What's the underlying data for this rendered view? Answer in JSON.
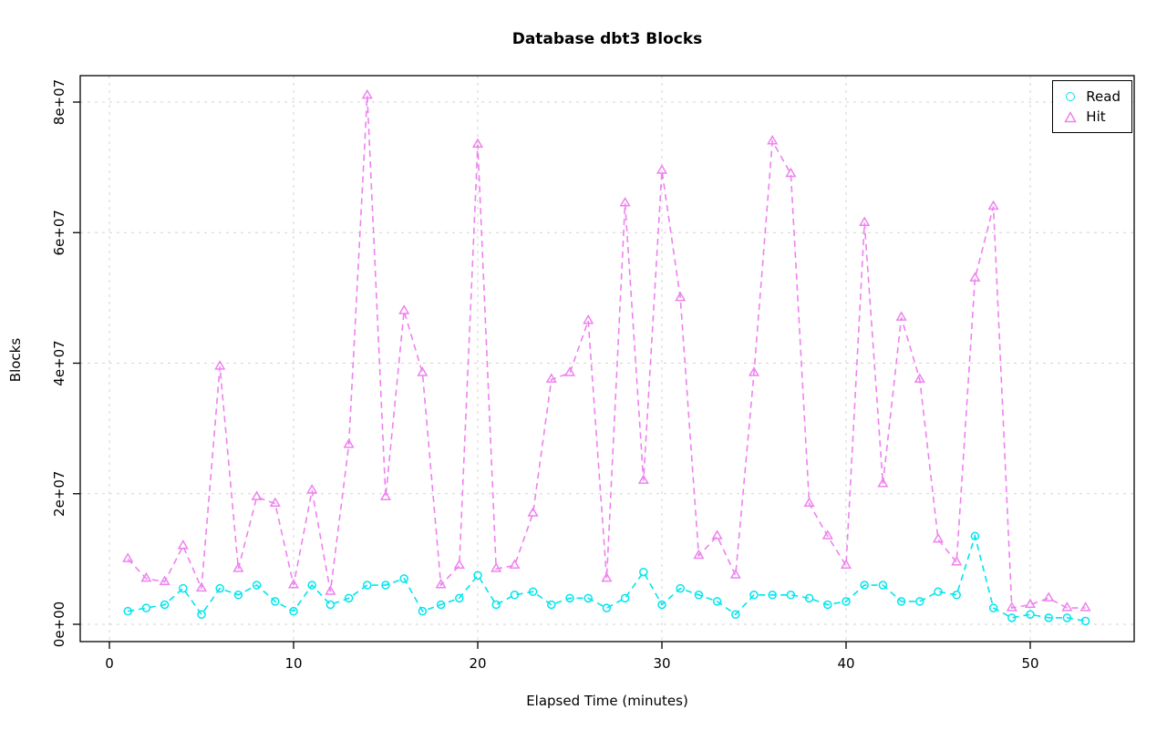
{
  "chart_data": {
    "type": "line",
    "title": "Database dbt3 Blocks",
    "xlabel": "Elapsed Time (minutes)",
    "ylabel": "Blocks",
    "xlim": [
      0,
      54
    ],
    "ylim": [
      0,
      83000000
    ],
    "grid": true,
    "legend_position": "top-right",
    "x_ticks": [
      0,
      10,
      20,
      30,
      40,
      50
    ],
    "x_tick_labels": [
      "0",
      "10",
      "20",
      "30",
      "40",
      "50"
    ],
    "y_ticks": [
      0,
      20000000,
      40000000,
      60000000,
      80000000
    ],
    "y_tick_labels": [
      "0e+00",
      "2e+07",
      "4e+07",
      "6e+07",
      "8e+07"
    ],
    "x": [
      1,
      2,
      3,
      4,
      5,
      6,
      7,
      8,
      9,
      10,
      11,
      12,
      13,
      14,
      15,
      16,
      17,
      18,
      19,
      20,
      21,
      22,
      23,
      24,
      25,
      26,
      27,
      28,
      29,
      30,
      31,
      32,
      33,
      34,
      35,
      36,
      37,
      38,
      39,
      40,
      41,
      42,
      43,
      44,
      45,
      46,
      47,
      48,
      49,
      50,
      51,
      52,
      53
    ],
    "series": [
      {
        "name": "Read",
        "color": "#00e5ee",
        "marker": "circle",
        "values": [
          2000000.0,
          2500000.0,
          3000000.0,
          5500000.0,
          1500000.0,
          5500000.0,
          4500000.0,
          6000000.0,
          3500000.0,
          2000000.0,
          6000000.0,
          3000000.0,
          4000000.0,
          6000000.0,
          6000000.0,
          7000000.0,
          2000000.0,
          3000000.0,
          4000000.0,
          7500000.0,
          3000000.0,
          4500000.0,
          5000000.0,
          3000000.0,
          4000000.0,
          4000000.0,
          2500000.0,
          4000000.0,
          8000000.0,
          3000000.0,
          5500000.0,
          4500000.0,
          3500000.0,
          1500000.0,
          4500000.0,
          4500000.0,
          4500000.0,
          4000000.0,
          3000000.0,
          3500000.0,
          6000000.0,
          6000000.0,
          3500000.0,
          3500000.0,
          5000000.0,
          4500000.0,
          13500000.0,
          2500000.0,
          1000000.0,
          1500000.0,
          1000000.0,
          1000000.0,
          500000.0
        ]
      },
      {
        "name": "Hit",
        "color": "#ee82ee",
        "marker": "triangle",
        "values": [
          10000000.0,
          7000000.0,
          6500000.0,
          12000000.0,
          5500000.0,
          39500000.0,
          8500000.0,
          19500000.0,
          18500000.0,
          6000000.0,
          20500000.0,
          5000000.0,
          27500000.0,
          81000000.0,
          19500000.0,
          48000000.0,
          38500000.0,
          6000000.0,
          9000000.0,
          73500000.0,
          8500000.0,
          9000000.0,
          17000000.0,
          37500000.0,
          38500000.0,
          46500000.0,
          7000000.0,
          64500000.0,
          22000000.0,
          69500000.0,
          50000000.0,
          10500000.0,
          13500000.0,
          7500000.0,
          38500000.0,
          74000000.0,
          69000000.0,
          18500000.0,
          13500000.0,
          9000000.0,
          61500000.0,
          21500000.0,
          47000000.0,
          37500000.0,
          13000000.0,
          9500000.0,
          53000000.0,
          64000000.0,
          2500000.0,
          3000000.0,
          4000000.0,
          2500000.0,
          2500000.0
        ]
      }
    ]
  }
}
